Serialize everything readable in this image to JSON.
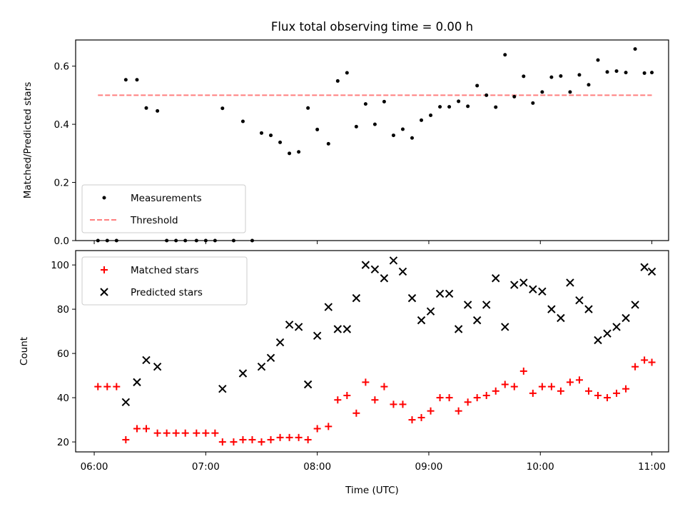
{
  "chart_data": [
    {
      "type": "scatter",
      "title": "Flux total observing time = 0.00 h",
      "ylabel": "Matched/Predicted stars",
      "ylim": [
        0,
        0.69
      ],
      "xlim": [
        "05:50",
        "11:09"
      ],
      "x_ticks": [
        "06:00",
        "07:00",
        "08:00",
        "09:00",
        "10:00",
        "11:00"
      ],
      "y_ticks": [
        "0.0",
        "0.2",
        "0.4",
        "0.6"
      ],
      "legend": {
        "placement": "lower-left",
        "entries": [
          "Measurements",
          "Threshold"
        ]
      },
      "threshold": {
        "name": "Threshold",
        "value": 0.5,
        "x_start": "06:02",
        "x_end": "11:00",
        "color": "#ff7f7f",
        "style": "dashed"
      },
      "series": [
        {
          "name": "Measurements",
          "color": "#000000",
          "marker": "dot",
          "points": [
            [
              "06:02",
              0.0
            ],
            [
              "06:07",
              0.0
            ],
            [
              "06:12",
              0.0
            ],
            [
              "06:17",
              0.553
            ],
            [
              "06:23",
              0.553
            ],
            [
              "06:28",
              0.456
            ],
            [
              "06:34",
              0.446
            ],
            [
              "06:39",
              0.0
            ],
            [
              "06:44",
              0.0
            ],
            [
              "06:49",
              0.0
            ],
            [
              "06:55",
              0.0
            ],
            [
              "07:00",
              0.0
            ],
            [
              "07:05",
              0.0
            ],
            [
              "07:09",
              0.455
            ],
            [
              "07:15",
              0.0
            ],
            [
              "07:20",
              0.41
            ],
            [
              "07:25",
              0.0
            ],
            [
              "07:30",
              0.37
            ],
            [
              "07:35",
              0.362
            ],
            [
              "07:40",
              0.338
            ],
            [
              "07:45",
              0.3
            ],
            [
              "07:50",
              0.305
            ],
            [
              "07:55",
              0.456
            ],
            [
              "08:00",
              0.382
            ],
            [
              "08:06",
              0.333
            ],
            [
              "08:11",
              0.549
            ],
            [
              "08:16",
              0.577
            ],
            [
              "08:21",
              0.392
            ],
            [
              "08:26",
              0.47
            ],
            [
              "08:31",
              0.4
            ],
            [
              "08:36",
              0.478
            ],
            [
              "08:41",
              0.362
            ],
            [
              "08:46",
              0.383
            ],
            [
              "08:51",
              0.353
            ],
            [
              "08:56",
              0.414
            ],
            [
              "09:01",
              0.431
            ],
            [
              "09:06",
              0.46
            ],
            [
              "09:11",
              0.46
            ],
            [
              "09:16",
              0.479
            ],
            [
              "09:21",
              0.462
            ],
            [
              "09:26",
              0.533
            ],
            [
              "09:31",
              0.5
            ],
            [
              "09:36",
              0.459
            ],
            [
              "09:41",
              0.639
            ],
            [
              "09:46",
              0.495
            ],
            [
              "09:51",
              0.565
            ],
            [
              "09:56",
              0.473
            ],
            [
              "10:01",
              0.511
            ],
            [
              "10:06",
              0.562
            ],
            [
              "10:11",
              0.566
            ],
            [
              "10:16",
              0.511
            ],
            [
              "10:21",
              0.57
            ],
            [
              "10:26",
              0.536
            ],
            [
              "10:31",
              0.621
            ],
            [
              "10:36",
              0.58
            ],
            [
              "10:41",
              0.583
            ],
            [
              "10:46",
              0.578
            ],
            [
              "10:51",
              0.659
            ],
            [
              "10:56",
              0.576
            ],
            [
              "11:00",
              0.578
            ]
          ]
        }
      ]
    },
    {
      "type": "scatter",
      "title": "",
      "xlabel": "Time (UTC)",
      "ylabel": "Count",
      "ylim": [
        15.5,
        106.5
      ],
      "xlim": [
        "05:50",
        "11:09"
      ],
      "x_ticks": [
        "06:00",
        "07:00",
        "08:00",
        "09:00",
        "10:00",
        "11:00"
      ],
      "y_ticks": [
        "20",
        "40",
        "60",
        "80",
        "100"
      ],
      "legend": {
        "placement": "upper-left",
        "entries": [
          "Matched stars",
          "Predicted stars"
        ]
      },
      "series": [
        {
          "name": "Matched stars",
          "color": "#ff0000",
          "marker": "plus",
          "points": [
            [
              "06:02",
              45
            ],
            [
              "06:07",
              45
            ],
            [
              "06:12",
              45
            ],
            [
              "06:17",
              21
            ],
            [
              "06:23",
              26
            ],
            [
              "06:28",
              26
            ],
            [
              "06:34",
              24
            ],
            [
              "06:39",
              24
            ],
            [
              "06:44",
              24
            ],
            [
              "06:49",
              24
            ],
            [
              "06:55",
              24
            ],
            [
              "07:00",
              24
            ],
            [
              "07:05",
              24
            ],
            [
              "07:09",
              20
            ],
            [
              "07:15",
              20
            ],
            [
              "07:20",
              21
            ],
            [
              "07:25",
              21
            ],
            [
              "07:30",
              20
            ],
            [
              "07:35",
              21
            ],
            [
              "07:40",
              22
            ],
            [
              "07:45",
              22
            ],
            [
              "07:50",
              22
            ],
            [
              "07:55",
              21
            ],
            [
              "08:00",
              26
            ],
            [
              "08:06",
              27
            ],
            [
              "08:11",
              39
            ],
            [
              "08:16",
              41
            ],
            [
              "08:21",
              33
            ],
            [
              "08:26",
              47
            ],
            [
              "08:31",
              39
            ],
            [
              "08:36",
              45
            ],
            [
              "08:41",
              37
            ],
            [
              "08:46",
              37
            ],
            [
              "08:51",
              30
            ],
            [
              "08:56",
              31
            ],
            [
              "09:01",
              34
            ],
            [
              "09:06",
              40
            ],
            [
              "09:11",
              40
            ],
            [
              "09:16",
              34
            ],
            [
              "09:21",
              38
            ],
            [
              "09:26",
              40
            ],
            [
              "09:31",
              41
            ],
            [
              "09:36",
              43
            ],
            [
              "09:41",
              46
            ],
            [
              "09:46",
              45
            ],
            [
              "09:51",
              52
            ],
            [
              "09:56",
              42
            ],
            [
              "10:01",
              45
            ],
            [
              "10:06",
              45
            ],
            [
              "10:11",
              43
            ],
            [
              "10:16",
              47
            ],
            [
              "10:21",
              48
            ],
            [
              "10:26",
              43
            ],
            [
              "10:31",
              41
            ],
            [
              "10:36",
              40
            ],
            [
              "10:41",
              42
            ],
            [
              "10:46",
              44
            ],
            [
              "10:51",
              54
            ],
            [
              "10:56",
              57
            ],
            [
              "11:00",
              56
            ]
          ]
        },
        {
          "name": "Predicted stars",
          "color": "#000000",
          "marker": "x",
          "points": [
            [
              "06:17",
              38
            ],
            [
              "06:23",
              47
            ],
            [
              "06:28",
              57
            ],
            [
              "06:34",
              54
            ],
            [
              "07:09",
              44
            ],
            [
              "07:20",
              51
            ],
            [
              "07:30",
              54
            ],
            [
              "07:35",
              58
            ],
            [
              "07:40",
              65
            ],
            [
              "07:45",
              73
            ],
            [
              "07:50",
              72
            ],
            [
              "07:55",
              46
            ],
            [
              "08:00",
              68
            ],
            [
              "08:06",
              81
            ],
            [
              "08:11",
              71
            ],
            [
              "08:16",
              71
            ],
            [
              "08:21",
              85
            ],
            [
              "08:26",
              100
            ],
            [
              "08:31",
              98
            ],
            [
              "08:36",
              94
            ],
            [
              "08:41",
              102
            ],
            [
              "08:46",
              97
            ],
            [
              "08:51",
              85
            ],
            [
              "08:56",
              75
            ],
            [
              "09:01",
              79
            ],
            [
              "09:06",
              87
            ],
            [
              "09:11",
              87
            ],
            [
              "09:16",
              71
            ],
            [
              "09:21",
              82
            ],
            [
              "09:26",
              75
            ],
            [
              "09:31",
              82
            ],
            [
              "09:36",
              94
            ],
            [
              "09:41",
              72
            ],
            [
              "09:46",
              91
            ],
            [
              "09:51",
              92
            ],
            [
              "09:56",
              89
            ],
            [
              "10:01",
              88
            ],
            [
              "10:06",
              80
            ],
            [
              "10:11",
              76
            ],
            [
              "10:16",
              92
            ],
            [
              "10:21",
              84
            ],
            [
              "10:26",
              80
            ],
            [
              "10:31",
              66
            ],
            [
              "10:36",
              69
            ],
            [
              "10:41",
              72
            ],
            [
              "10:46",
              76
            ],
            [
              "10:51",
              82
            ],
            [
              "10:56",
              99
            ],
            [
              "11:00",
              97
            ]
          ]
        }
      ]
    }
  ]
}
